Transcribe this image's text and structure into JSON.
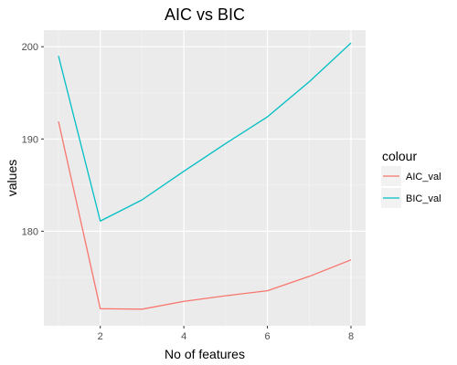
{
  "chart_data": {
    "type": "line",
    "title": "AIC vs BIC",
    "xlabel": "No of features",
    "ylabel": "values",
    "xlim": [
      0.65,
      8.35
    ],
    "ylim": [
      169.75,
      201.8
    ],
    "x_ticks": [
      2,
      4,
      6,
      8
    ],
    "y_ticks": [
      180,
      190,
      200
    ],
    "grid": true,
    "legend": {
      "title": "colour",
      "position": "right"
    },
    "x": [
      1,
      2,
      3,
      4,
      5,
      6,
      7,
      8
    ],
    "series": [
      {
        "name": "AIC_val",
        "color": "#F8766D",
        "values": [
          191.9,
          171.6,
          171.55,
          172.4,
          173.0,
          173.55,
          175.1,
          176.9
        ]
      },
      {
        "name": "BIC_val",
        "color": "#00BFC4",
        "values": [
          199.0,
          181.1,
          183.4,
          186.5,
          189.5,
          192.4,
          196.2,
          200.4
        ]
      }
    ]
  }
}
